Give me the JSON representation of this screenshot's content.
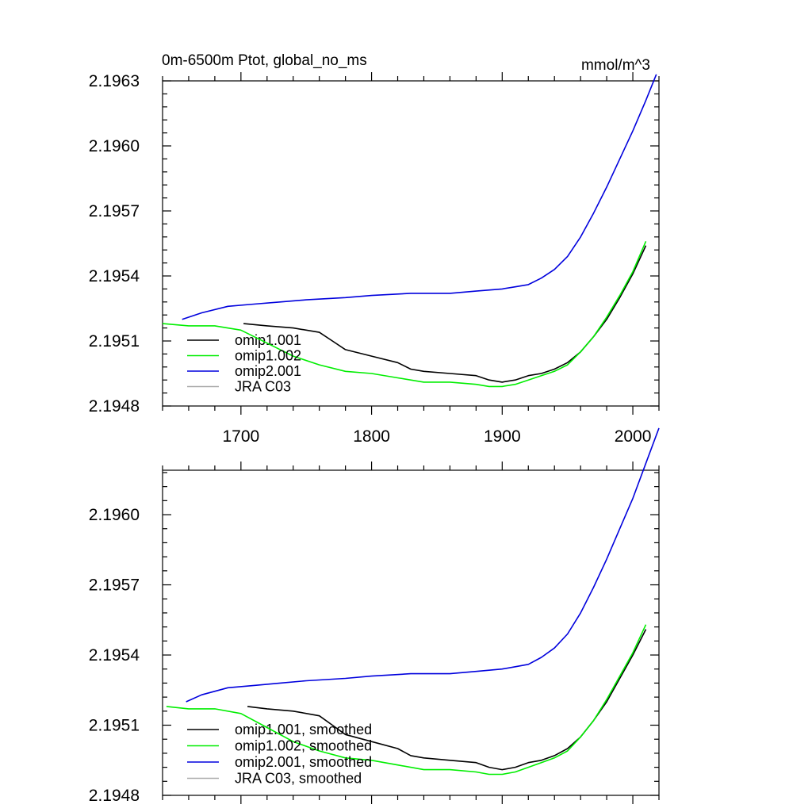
{
  "top_panel": {
    "title_left": "0m-6500m Ptot, global_no_ms",
    "title_right": "mmol/m^3"
  },
  "chart_data": [
    {
      "type": "line",
      "title": "0m-6500m Ptot, global_no_ms",
      "units": "mmol/m^3",
      "xlim": [
        1640,
        2020
      ],
      "ylim": [
        2.1948,
        2.1963
      ],
      "xticks": [
        1700,
        1800,
        1900,
        2000
      ],
      "yticks": [
        2.1948,
        2.1951,
        2.1954,
        2.1957,
        2.196,
        2.1963
      ],
      "ytick_labels": [
        "2.1948",
        "2.1951",
        "2.1954",
        "2.1957",
        "2.1960",
        "2.1963"
      ],
      "xtick_labels": [
        "1700",
        "1800",
        "1900",
        "2000"
      ],
      "legend_position": "bottom-left",
      "series": [
        {
          "name": "omip1.001",
          "color": "#000000",
          "x": [
            1702,
            1720,
            1740,
            1760,
            1770,
            1780,
            1800,
            1820,
            1830,
            1840,
            1860,
            1880,
            1890,
            1900,
            1910,
            1920,
            1930,
            1940,
            1950,
            1960,
            1970,
            1980,
            1990,
            2000,
            2010
          ],
          "y": [
            2.19518,
            2.19517,
            2.19516,
            2.19514,
            2.1951,
            2.19506,
            2.19503,
            2.195,
            2.19497,
            2.19496,
            2.19495,
            2.19494,
            2.19492,
            2.19491,
            2.19492,
            2.19494,
            2.19495,
            2.19497,
            2.195,
            2.19505,
            2.19512,
            2.1952,
            2.1953,
            2.19541,
            2.19554
          ]
        },
        {
          "name": "omip1.002",
          "color": "#00ee00",
          "x": [
            1640,
            1660,
            1680,
            1700,
            1720,
            1740,
            1760,
            1780,
            1800,
            1820,
            1840,
            1860,
            1880,
            1890,
            1900,
            1910,
            1920,
            1930,
            1940,
            1950,
            1960,
            1970,
            1980,
            1990,
            2000,
            2010
          ],
          "y": [
            2.19518,
            2.19517,
            2.19517,
            2.19515,
            2.19509,
            2.19503,
            2.19499,
            2.19496,
            2.19495,
            2.19493,
            2.19491,
            2.19491,
            2.1949,
            2.19489,
            2.19489,
            2.1949,
            2.19492,
            2.19494,
            2.19496,
            2.19499,
            2.19505,
            2.19512,
            2.19521,
            2.19531,
            2.19542,
            2.19556
          ]
        },
        {
          "name": "omip2.001",
          "color": "#0000dd",
          "x": [
            1655,
            1670,
            1690,
            1710,
            1730,
            1750,
            1780,
            1800,
            1830,
            1860,
            1880,
            1900,
            1910,
            1920,
            1930,
            1940,
            1950,
            1960,
            1970,
            1980,
            1990,
            2000,
            2010,
            2018
          ],
          "y": [
            2.1952,
            2.19523,
            2.19526,
            2.19527,
            2.19528,
            2.19529,
            2.1953,
            2.19531,
            2.19532,
            2.19532,
            2.19533,
            2.19534,
            2.19535,
            2.19536,
            2.19539,
            2.19543,
            2.19549,
            2.19558,
            2.19569,
            2.19581,
            2.19594,
            2.19607,
            2.19621,
            2.19633
          ]
        },
        {
          "name": "JRA C03",
          "color": "#aaaaaa",
          "x": [],
          "y": []
        }
      ]
    },
    {
      "type": "line",
      "xlim": [
        1640,
        2020
      ],
      "ylim": [
        2.1948,
        2.19619
      ],
      "xticks": [
        1700,
        1800,
        1900,
        2000
      ],
      "yticks": [
        2.1948,
        2.1951,
        2.1954,
        2.1957,
        2.196
      ],
      "ytick_labels": [
        "2.1948",
        "2.1951",
        "2.1954",
        "2.1957",
        "2.1960"
      ],
      "legend_position": "bottom-left",
      "series": [
        {
          "name": "omip1.001, smoothed",
          "color": "#000000",
          "x": [
            1705,
            1720,
            1740,
            1760,
            1770,
            1780,
            1800,
            1820,
            1830,
            1840,
            1860,
            1880,
            1890,
            1900,
            1910,
            1920,
            1930,
            1940,
            1950,
            1960,
            1970,
            1980,
            1990,
            2000,
            2010
          ],
          "y": [
            2.19518,
            2.19517,
            2.19516,
            2.19514,
            2.1951,
            2.19506,
            2.19503,
            2.195,
            2.19497,
            2.19496,
            2.19495,
            2.19494,
            2.19492,
            2.19491,
            2.19492,
            2.19494,
            2.19495,
            2.19497,
            2.195,
            2.19505,
            2.19512,
            2.1952,
            2.1953,
            2.1954,
            2.19551
          ]
        },
        {
          "name": "omip1.002, smoothed",
          "color": "#00ee00",
          "x": [
            1643,
            1660,
            1680,
            1700,
            1720,
            1740,
            1760,
            1780,
            1800,
            1820,
            1840,
            1860,
            1880,
            1890,
            1900,
            1910,
            1920,
            1930,
            1940,
            1950,
            1960,
            1970,
            1980,
            1990,
            2000,
            2010
          ],
          "y": [
            2.19518,
            2.19517,
            2.19517,
            2.19515,
            2.19509,
            2.19503,
            2.19499,
            2.19496,
            2.19495,
            2.19493,
            2.19491,
            2.19491,
            2.1949,
            2.19489,
            2.19489,
            2.1949,
            2.19492,
            2.19494,
            2.19496,
            2.19499,
            2.19505,
            2.19512,
            2.19521,
            2.19531,
            2.19541,
            2.19553
          ]
        },
        {
          "name": "omip2.001, smoothed",
          "color": "#0000dd",
          "x": [
            1658,
            1670,
            1690,
            1710,
            1730,
            1750,
            1780,
            1800,
            1830,
            1860,
            1880,
            1900,
            1910,
            1920,
            1930,
            1940,
            1950,
            1960,
            1970,
            1980,
            1990,
            2000,
            2010,
            2020
          ],
          "y": [
            2.1952,
            2.19523,
            2.19526,
            2.19527,
            2.19528,
            2.19529,
            2.1953,
            2.19531,
            2.19532,
            2.19532,
            2.19533,
            2.19534,
            2.19535,
            2.19536,
            2.19539,
            2.19543,
            2.19549,
            2.19558,
            2.19569,
            2.19581,
            2.19594,
            2.19607,
            2.19622,
            2.19637
          ]
        },
        {
          "name": "JRA C03, smoothed",
          "color": "#aaaaaa",
          "x": [],
          "y": []
        }
      ]
    }
  ]
}
